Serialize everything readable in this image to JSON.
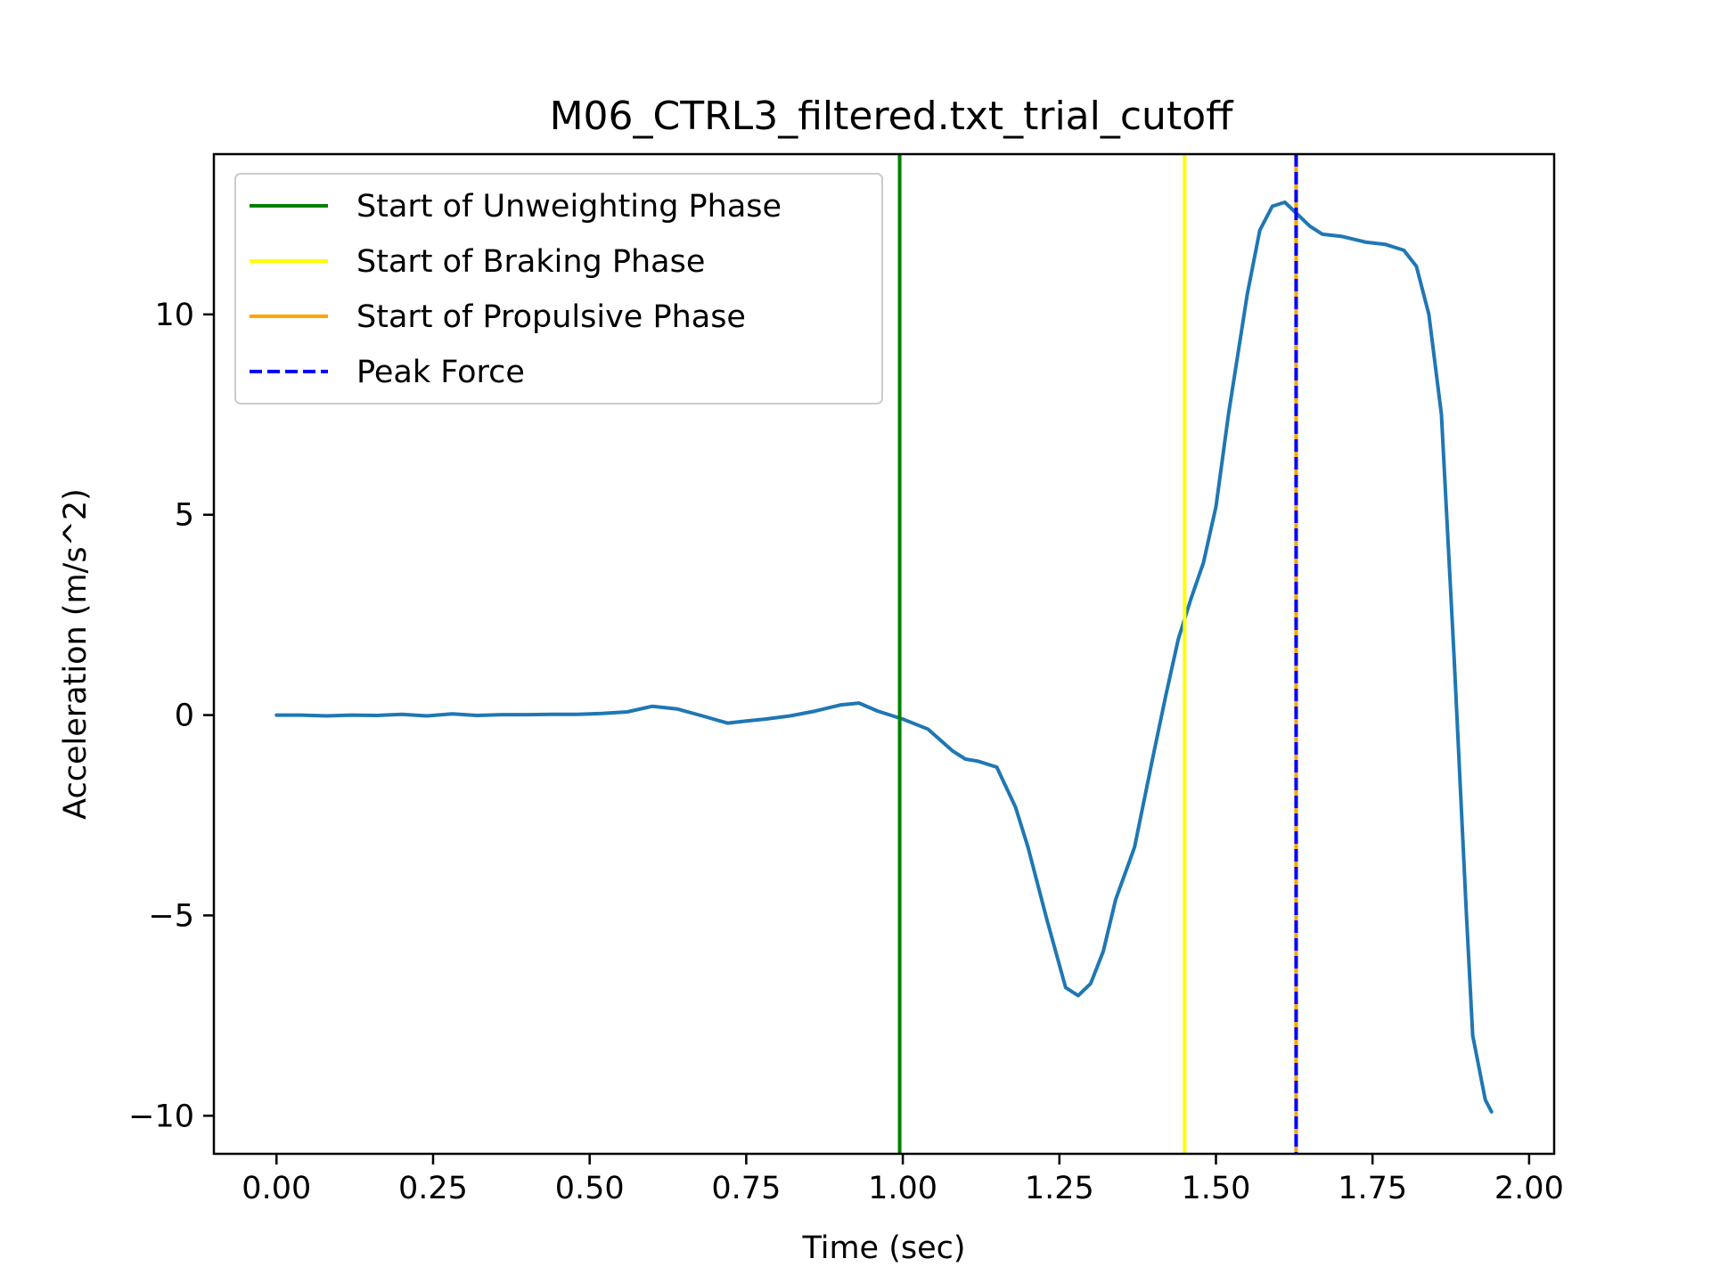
{
  "chart_data": {
    "type": "line",
    "title": "M06_CTRL3_filtered.txt_trial_cutoff",
    "xlabel": "Time (sec)",
    "ylabel": "Acceleration (m/s^2)",
    "xlim": [
      -0.1,
      2.04
    ],
    "ylim": [
      -10.95,
      14.0
    ],
    "xticks": [
      0.0,
      0.25,
      0.5,
      0.75,
      1.0,
      1.25,
      1.5,
      1.75,
      2.0
    ],
    "xtick_labels": [
      "0.00",
      "0.25",
      "0.50",
      "0.75",
      "1.00",
      "1.25",
      "1.50",
      "1.75",
      "2.00"
    ],
    "yticks": [
      -10,
      -5,
      0,
      5,
      10
    ],
    "ytick_labels": [
      "−10",
      "−5",
      "0",
      "5",
      "10"
    ],
    "grid": false,
    "legend_position": "top-left",
    "series": [
      {
        "color": "#1f77b4",
        "x": [
          0.0,
          0.04,
          0.08,
          0.12,
          0.16,
          0.2,
          0.24,
          0.28,
          0.32,
          0.36,
          0.4,
          0.44,
          0.48,
          0.52,
          0.56,
          0.6,
          0.64,
          0.68,
          0.72,
          0.75,
          0.78,
          0.82,
          0.86,
          0.9,
          0.93,
          0.96,
          1.0,
          1.04,
          1.08,
          1.1,
          1.12,
          1.15,
          1.18,
          1.2,
          1.23,
          1.26,
          1.28,
          1.3,
          1.32,
          1.34,
          1.37,
          1.4,
          1.42,
          1.44,
          1.46,
          1.48,
          1.5,
          1.52,
          1.55,
          1.57,
          1.59,
          1.61,
          1.63,
          1.65,
          1.67,
          1.7,
          1.74,
          1.77,
          1.8,
          1.82,
          1.84,
          1.86,
          1.88,
          1.9,
          1.91,
          1.93,
          1.94
        ],
        "y": [
          0.0,
          0.0,
          -0.02,
          0.0,
          -0.01,
          0.02,
          -0.02,
          0.03,
          -0.01,
          0.01,
          0.01,
          0.02,
          0.02,
          0.04,
          0.08,
          0.22,
          0.15,
          -0.02,
          -0.2,
          -0.15,
          -0.1,
          -0.02,
          0.1,
          0.25,
          0.3,
          0.1,
          -0.1,
          -0.35,
          -0.9,
          -1.1,
          -1.15,
          -1.3,
          -2.3,
          -3.3,
          -5.1,
          -6.8,
          -7.0,
          -6.7,
          -5.9,
          -4.6,
          -3.3,
          -1.0,
          0.5,
          1.9,
          2.9,
          3.8,
          5.2,
          7.5,
          10.5,
          12.1,
          12.7,
          12.8,
          12.5,
          12.2,
          12.0,
          11.95,
          11.8,
          11.75,
          11.6,
          11.2,
          10.0,
          7.5,
          1.5,
          -5.0,
          -8.0,
          -9.6,
          -9.9
        ]
      }
    ],
    "vlines": [
      {
        "name": "Start of Unweighting Phase",
        "x": 0.995,
        "color": "#008000",
        "style": "solid"
      },
      {
        "name": "Start of Braking Phase",
        "x": 1.45,
        "color": "#ffff00",
        "style": "solid"
      },
      {
        "name": "Start of Propulsive Phase",
        "x": 1.628,
        "color": "#ffa500",
        "style": "solid"
      },
      {
        "name": "Peak Force",
        "x": 1.628,
        "color": "#0000ff",
        "style": "dashed"
      }
    ]
  }
}
